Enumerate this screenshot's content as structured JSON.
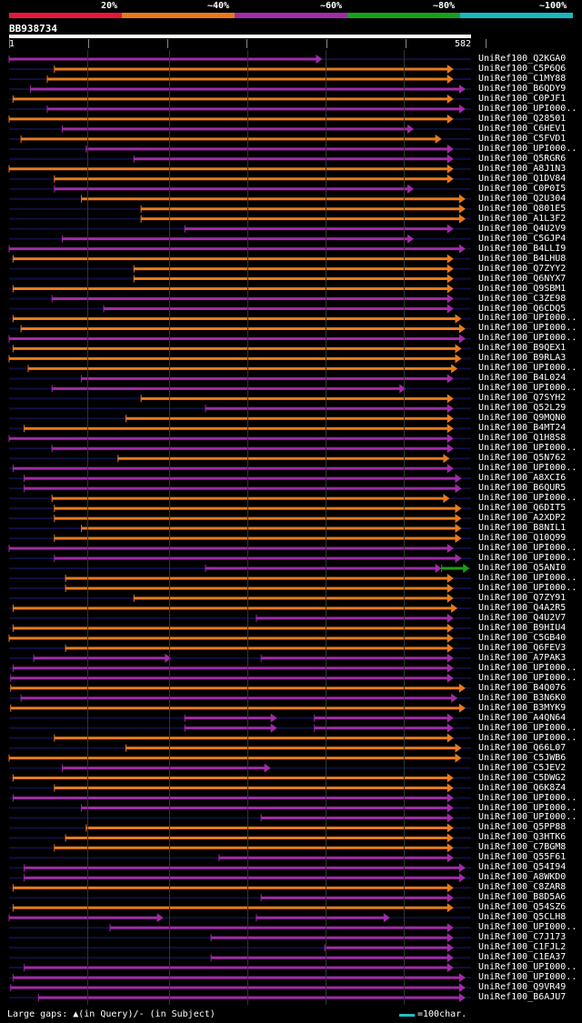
{
  "legend": [
    {
      "label": "20%",
      "color": "#e8163c"
    },
    {
      "label": "~40%",
      "color": "#e87a1c"
    },
    {
      "label": "~60%",
      "color": "#a02ca8"
    },
    {
      "label": "~80%",
      "color": "#18a018"
    },
    {
      "label": "~100%",
      "color": "#18b8c0"
    }
  ],
  "query": {
    "id": "BB938734",
    "start": "1",
    "end": "582",
    "length": 582
  },
  "hits": [
    {
      "name": "UniRef100_Q2KGA0",
      "c": "p",
      "s": [
        [
          1,
          395
        ]
      ]
    },
    {
      "name": "UniRef100_C5P6Q6",
      "c": "o",
      "s": [
        [
          58,
          560
        ]
      ]
    },
    {
      "name": "UniRef100_C1MY88",
      "c": "o",
      "s": [
        [
          49,
          560
        ]
      ]
    },
    {
      "name": "UniRef100_B6QDY9",
      "c": "p",
      "s": [
        [
          28,
          575
        ]
      ]
    },
    {
      "name": "UniRef100_C0PJF1",
      "c": "o",
      "s": [
        [
          6,
          560
        ]
      ]
    },
    {
      "name": "UniRef100_UPI000..",
      "c": "p",
      "s": [
        [
          49,
          575
        ]
      ]
    },
    {
      "name": "UniRef100_Q28501",
      "c": "o",
      "s": [
        [
          1,
          560
        ]
      ]
    },
    {
      "name": "UniRef100_C6HEV1",
      "c": "p",
      "s": [
        [
          68,
          510
        ]
      ]
    },
    {
      "name": "UniRef100_C5FVD1",
      "c": "o",
      "s": [
        [
          16,
          545
        ]
      ]
    },
    {
      "name": "UniRef100_UPI000..",
      "c": "p",
      "s": [
        [
          98,
          560
        ]
      ]
    },
    {
      "name": "UniRef100_Q5RGR6",
      "c": "p",
      "s": [
        [
          158,
          560
        ]
      ]
    },
    {
      "name": "UniRef100_A8J1N3",
      "c": "o",
      "s": [
        [
          1,
          560
        ]
      ]
    },
    {
      "name": "UniRef100_Q1DV84",
      "c": "o",
      "s": [
        [
          58,
          560
        ]
      ]
    },
    {
      "name": "UniRef100_C0P0I5",
      "c": "p",
      "s": [
        [
          58,
          510
        ]
      ]
    },
    {
      "name": "UniRef100_Q2U304",
      "c": "o",
      "s": [
        [
          92,
          575
        ]
      ]
    },
    {
      "name": "UniRef100_Q801E5",
      "c": "o",
      "s": [
        [
          167,
          575
        ]
      ]
    },
    {
      "name": "UniRef100_A1L3F2",
      "c": "o",
      "s": [
        [
          167,
          575
        ]
      ]
    },
    {
      "name": "UniRef100_Q4U2V9",
      "c": "p",
      "s": [
        [
          222,
          560
        ]
      ]
    },
    {
      "name": "UniRef100_C5GJP4",
      "c": "p",
      "s": [
        [
          68,
          510
        ]
      ]
    },
    {
      "name": "UniRef100_B4LLI9",
      "c": "p",
      "s": [
        [
          1,
          575
        ]
      ]
    },
    {
      "name": "UniRef100_B4LHU8",
      "c": "o",
      "s": [
        [
          6,
          560
        ]
      ]
    },
    {
      "name": "UniRef100_Q7ZYY2",
      "c": "o",
      "s": [
        [
          158,
          560
        ]
      ]
    },
    {
      "name": "UniRef100_Q6NYX7",
      "c": "o",
      "s": [
        [
          158,
          560
        ]
      ]
    },
    {
      "name": "UniRef100_Q9SBM1",
      "c": "o",
      "s": [
        [
          6,
          560
        ]
      ]
    },
    {
      "name": "UniRef100_C3ZE98",
      "c": "p",
      "s": [
        [
          55,
          560
        ]
      ]
    },
    {
      "name": "UniRef100_Q6CDQ5",
      "c": "p",
      "s": [
        [
          120,
          560
        ]
      ]
    },
    {
      "name": "UniRef100_UPI000..",
      "c": "o",
      "s": [
        [
          6,
          570
        ]
      ]
    },
    {
      "name": "UniRef100_UPI000..",
      "c": "o",
      "s": [
        [
          16,
          575
        ]
      ]
    },
    {
      "name": "UniRef100_UPI000..",
      "c": "p",
      "s": [
        [
          1,
          575
        ]
      ]
    },
    {
      "name": "UniRef100_B9QEX1",
      "c": "o",
      "s": [
        [
          6,
          570
        ]
      ]
    },
    {
      "name": "UniRef100_B9RLA3",
      "c": "o",
      "s": [
        [
          1,
          570
        ]
      ]
    },
    {
      "name": "UniRef100_UPI000..",
      "c": "o",
      "s": [
        [
          25,
          565
        ]
      ]
    },
    {
      "name": "UniRef100_B4L024",
      "c": "p",
      "s": [
        [
          92,
          560
        ]
      ]
    },
    {
      "name": "UniRef100_UPI000..",
      "c": "p",
      "s": [
        [
          55,
          500
        ]
      ]
    },
    {
      "name": "UniRef100_Q7SYH2",
      "c": "o",
      "s": [
        [
          167,
          560
        ]
      ]
    },
    {
      "name": "UniRef100_Q52L29",
      "c": "p",
      "s": [
        [
          248,
          560
        ]
      ]
    },
    {
      "name": "UniRef100_Q9MQN0",
      "c": "o",
      "s": [
        [
          148,
          560
        ]
      ]
    },
    {
      "name": "UniRef100_B4MT24",
      "c": "o",
      "s": [
        [
          20,
          560
        ]
      ]
    },
    {
      "name": "UniRef100_Q1H8S8",
      "c": "p",
      "s": [
        [
          1,
          560
        ]
      ]
    },
    {
      "name": "UniRef100_UPI000..",
      "c": "p",
      "s": [
        [
          55,
          560
        ]
      ]
    },
    {
      "name": "UniRef100_Q5N762",
      "c": "o",
      "s": [
        [
          138,
          555
        ]
      ]
    },
    {
      "name": "UniRef100_UPI000..",
      "c": "p",
      "s": [
        [
          6,
          560
        ]
      ]
    },
    {
      "name": "UniRef100_A8XCI6",
      "c": "p",
      "s": [
        [
          20,
          570
        ]
      ]
    },
    {
      "name": "UniRef100_B6QUR5",
      "c": "p",
      "s": [
        [
          20,
          570
        ]
      ]
    },
    {
      "name": "UniRef100_UPI000..",
      "c": "o",
      "s": [
        [
          55,
          555
        ]
      ]
    },
    {
      "name": "UniRef100_Q6DIT5",
      "c": "o",
      "s": [
        [
          58,
          570
        ]
      ]
    },
    {
      "name": "UniRef100_A2XDP2",
      "c": "o",
      "s": [
        [
          58,
          570
        ]
      ]
    },
    {
      "name": "UniRef100_B8NIL1",
      "c": "o",
      "s": [
        [
          92,
          570
        ]
      ]
    },
    {
      "name": "UniRef100_Q10Q99",
      "c": "o",
      "s": [
        [
          58,
          570
        ]
      ]
    },
    {
      "name": "UniRef100_UPI000..",
      "c": "p",
      "s": [
        [
          1,
          560
        ]
      ]
    },
    {
      "name": "UniRef100_UPI000..",
      "c": "p",
      "s": [
        [
          58,
          570
        ]
      ]
    },
    {
      "name": "UniRef100_Q5ANI0",
      "c": "p",
      "s": [
        [
          248,
          545
        ]
      ],
      "g": [
        [
          545,
          580
        ]
      ]
    },
    {
      "name": "UniRef100_UPI000..",
      "c": "o",
      "s": [
        [
          72,
          560
        ]
      ]
    },
    {
      "name": "UniRef100_UPI000..",
      "c": "o",
      "s": [
        [
          72,
          560
        ]
      ]
    },
    {
      "name": "UniRef100_Q7ZY91",
      "c": "o",
      "s": [
        [
          158,
          560
        ]
      ]
    },
    {
      "name": "UniRef100_Q4A2R5",
      "c": "o",
      "s": [
        [
          6,
          565
        ]
      ]
    },
    {
      "name": "UniRef100_Q4U2V7",
      "c": "p",
      "s": [
        [
          312,
          560
        ]
      ]
    },
    {
      "name": "UniRef100_B9HIU4",
      "c": "o",
      "s": [
        [
          6,
          560
        ]
      ]
    },
    {
      "name": "UniRef100_C5GB40",
      "c": "o",
      "s": [
        [
          1,
          560
        ]
      ]
    },
    {
      "name": "UniRef100_Q6FEV3",
      "c": "o",
      "s": [
        [
          72,
          560
        ]
      ]
    },
    {
      "name": "UniRef100_A7PAK3",
      "c": "p",
      "s": [
        [
          32,
          205
        ]
      ],
      "s2": [
        [
          318,
          560
        ]
      ]
    },
    {
      "name": "UniRef100_UPI000..",
      "c": "p",
      "s": [
        [
          6,
          560
        ]
      ]
    },
    {
      "name": "UniRef100_UPI000..",
      "c": "p",
      "s": [
        [
          3,
          560
        ]
      ]
    },
    {
      "name": "UniRef100_B4Q076",
      "c": "o",
      "s": [
        [
          3,
          575
        ]
      ]
    },
    {
      "name": "UniRef100_B3N6K0",
      "c": "p",
      "s": [
        [
          16,
          565
        ]
      ]
    },
    {
      "name": "UniRef100_B3MYK9",
      "c": "o",
      "s": [
        [
          3,
          575
        ]
      ]
    },
    {
      "name": "UniRef100_A4QN64",
      "c": "p",
      "s": [
        [
          222,
          338
        ]
      ],
      "s2": [
        [
          385,
          560
        ]
      ]
    },
    {
      "name": "UniRef100_UPI000..",
      "c": "p",
      "s": [
        [
          222,
          338
        ]
      ],
      "s2": [
        [
          385,
          560
        ]
      ]
    },
    {
      "name": "UniRef100_UPI000..",
      "c": "o",
      "s": [
        [
          58,
          560
        ]
      ]
    },
    {
      "name": "UniRef100_Q66L07",
      "c": "o",
      "s": [
        [
          148,
          570
        ]
      ]
    },
    {
      "name": "UniRef100_C5JWB6",
      "c": "o",
      "s": [
        [
          1,
          570
        ]
      ]
    },
    {
      "name": "UniRef100_C5JEV2",
      "c": "p",
      "s": [
        [
          68,
          330
        ]
      ]
    },
    {
      "name": "UniRef100_C5DWG2",
      "c": "o",
      "s": [
        [
          6,
          560
        ]
      ]
    },
    {
      "name": "UniRef100_Q6K8Z4",
      "c": "o",
      "s": [
        [
          58,
          560
        ]
      ]
    },
    {
      "name": "UniRef100_UPI000..",
      "c": "p",
      "s": [
        [
          6,
          560
        ]
      ]
    },
    {
      "name": "UniRef100_UPI000..",
      "c": "p",
      "s": [
        [
          92,
          560
        ]
      ]
    },
    {
      "name": "UniRef100_UPI000..",
      "c": "p",
      "s": [
        [
          318,
          560
        ]
      ]
    },
    {
      "name": "UniRef100_Q5PP88",
      "c": "o",
      "s": [
        [
          98,
          560
        ]
      ]
    },
    {
      "name": "UniRef100_Q3HTK6",
      "c": "o",
      "s": [
        [
          72,
          560
        ]
      ]
    },
    {
      "name": "UniRef100_C7BGM8",
      "c": "o",
      "s": [
        [
          58,
          560
        ]
      ]
    },
    {
      "name": "UniRef100_Q55F61",
      "c": "p",
      "s": [
        [
          265,
          560
        ]
      ]
    },
    {
      "name": "UniRef100_Q54I94",
      "c": "p",
      "s": [
        [
          20,
          575
        ]
      ]
    },
    {
      "name": "UniRef100_A8WKD0",
      "c": "p",
      "s": [
        [
          20,
          575
        ]
      ]
    },
    {
      "name": "UniRef100_C8ZAR8",
      "c": "o",
      "s": [
        [
          6,
          560
        ]
      ]
    },
    {
      "name": "UniRef100_B8D5A6",
      "c": "p",
      "s": [
        [
          318,
          560
        ]
      ]
    },
    {
      "name": "UniRef100_Q54SZ6",
      "c": "o",
      "s": [
        [
          6,
          560
        ]
      ]
    },
    {
      "name": "UniRef100_Q5CLH8",
      "c": "p",
      "s": [
        [
          1,
          195
        ]
      ],
      "s2": [
        [
          312,
          480
        ]
      ]
    },
    {
      "name": "UniRef100_UPI000..",
      "c": "p",
      "s": [
        [
          128,
          560
        ]
      ]
    },
    {
      "name": "UniRef100_C7J173",
      "c": "p",
      "s": [
        [
          255,
          560
        ]
      ]
    },
    {
      "name": "UniRef100_C1FJL2",
      "c": "p",
      "s": [
        [
          398,
          560
        ]
      ]
    },
    {
      "name": "UniRef100_C1EA37",
      "c": "p",
      "s": [
        [
          255,
          560
        ]
      ]
    },
    {
      "name": "UniRef100_UPI000..",
      "c": "p",
      "s": [
        [
          20,
          560
        ]
      ]
    },
    {
      "name": "UniRef100_UPI000..",
      "c": "p",
      "s": [
        [
          6,
          575
        ]
      ]
    },
    {
      "name": "UniRef100_Q9VR49",
      "c": "p",
      "s": [
        [
          3,
          575
        ]
      ]
    },
    {
      "name": "UniRef100_B6AJU7",
      "c": "p",
      "s": [
        [
          38,
          575
        ]
      ]
    }
  ],
  "footer": {
    "text": "Large gaps: ▲(in Query)/- (in Subject)",
    "scale": "=100char."
  }
}
